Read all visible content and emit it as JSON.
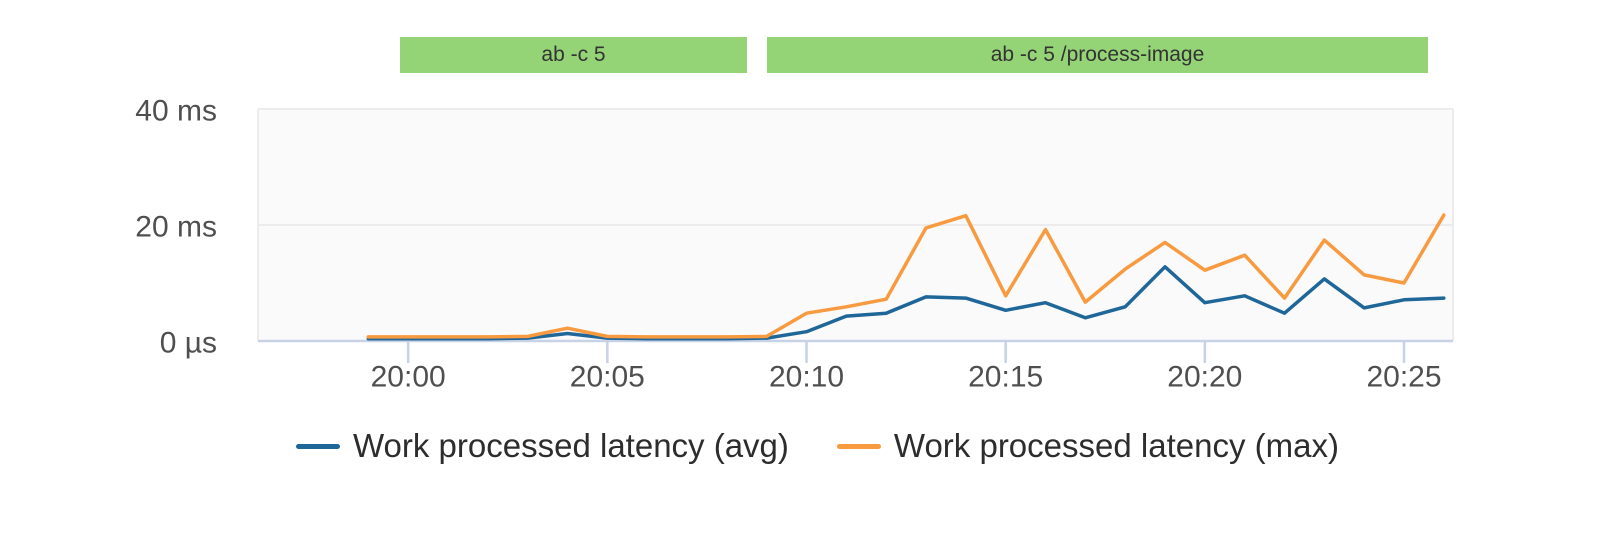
{
  "chart_data": {
    "type": "line",
    "title": "",
    "x_times": [
      "19:59",
      "20:00",
      "20:01",
      "20:02",
      "20:03",
      "20:04",
      "20:05",
      "20:06",
      "20:07",
      "20:08",
      "20:09",
      "20:10",
      "20:11",
      "20:12",
      "20:13",
      "20:14",
      "20:15",
      "20:16",
      "20:17",
      "20:18",
      "20:19",
      "20:20",
      "20:21",
      "20:22",
      "20:23",
      "20:24",
      "20:25",
      "20:26"
    ],
    "x_start_minute": -1,
    "x_step_minutes": 1,
    "x_domain_minutes": [
      -3.77,
      26.23
    ],
    "ylim": [
      0,
      40
    ],
    "y_unit": "ms",
    "grid": "horizontal",
    "legend_position": "bottom",
    "series": [
      {
        "name": "Work processed latency (avg)",
        "color": "#1f6699",
        "values": [
          0.4,
          0.4,
          0.4,
          0.4,
          0.5,
          1.3,
          0.5,
          0.4,
          0.4,
          0.4,
          0.5,
          1.6,
          4.3,
          4.8,
          7.6,
          7.4,
          5.3,
          6.6,
          4.0,
          5.9,
          12.8,
          6.6,
          7.8,
          4.8,
          10.7,
          5.7,
          7.1,
          7.4
        ]
      },
      {
        "name": "Work processed latency (max)",
        "color": "#f89b40",
        "values": [
          0.7,
          0.7,
          0.7,
          0.7,
          0.8,
          2.2,
          0.8,
          0.7,
          0.7,
          0.7,
          0.8,
          4.8,
          5.9,
          7.2,
          19.5,
          21.6,
          7.8,
          19.2,
          6.7,
          12.4,
          17.0,
          12.2,
          14.8,
          7.4,
          17.4,
          11.4,
          10.0,
          21.7
        ]
      }
    ],
    "y_ticks": [
      {
        "value": 0,
        "label": "0 µs"
      },
      {
        "value": 20,
        "label": "20 ms"
      },
      {
        "value": 40,
        "label": "40 ms"
      }
    ],
    "x_ticks": [
      {
        "minute": 0,
        "label": "20:00"
      },
      {
        "minute": 5,
        "label": "20:05"
      },
      {
        "minute": 10,
        "label": "20:10"
      },
      {
        "minute": 15,
        "label": "20:15"
      },
      {
        "minute": 20,
        "label": "20:20"
      },
      {
        "minute": 25,
        "label": "20:25"
      }
    ],
    "annotations": [
      {
        "label": "ab -c 5",
        "start_minute": -0.2,
        "end_minute": 8.5,
        "color": "#95d377"
      },
      {
        "label": "ab -c 5 /process-image",
        "start_minute": 9.0,
        "end_minute": 25.6,
        "color": "#95d377"
      }
    ]
  },
  "colors": {
    "plot_bg": "#fafafa",
    "plot_border": "#ececec",
    "grid_line": "#ececec",
    "baseline": "#c7d2e6",
    "tick_mark": "#c7d2e6",
    "axis_text": "#4f4f4f",
    "band_text": "#333333",
    "legend_text": "#2d2d2d"
  }
}
